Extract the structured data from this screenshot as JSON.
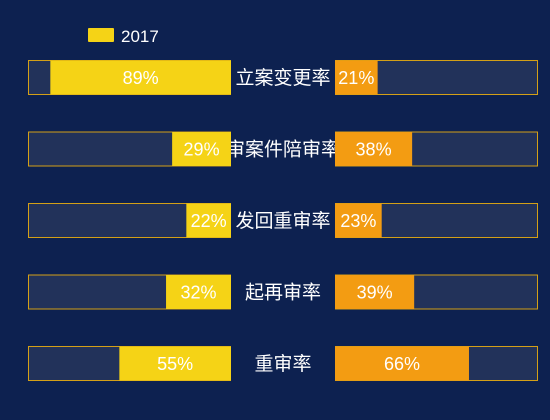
{
  "chart_data": {
    "type": "bar",
    "layout": "butterfly",
    "legend": {
      "position": "top-left",
      "entries": [
        {
          "label": "2017",
          "color": "#f5d316"
        }
      ]
    },
    "categories": [
      "立案变更率",
      "审案件陪审率",
      "发回重审率",
      "起再审率",
      "重审率"
    ],
    "category_labels_visible": [
      "立案变更率",
      "审案件陪审率",
      "发回重审率",
      "起再审率",
      "重审率"
    ],
    "xlim": [
      0,
      100
    ],
    "series": [
      {
        "side": "left",
        "name": "2017",
        "color": "#f5d316",
        "values": [
          89,
          29,
          22,
          32,
          55
        ],
        "labels": [
          "89%",
          "29%",
          "22%",
          "32%",
          "55%"
        ]
      },
      {
        "side": "right",
        "color": "#f39c12",
        "values": [
          21,
          38,
          23,
          39,
          66
        ],
        "labels": [
          "21%",
          "38%",
          "23%",
          "39%",
          "66%"
        ]
      }
    ],
    "track_color": "#22325a",
    "track_border_color": "#d4a017",
    "label_color": "#ffffff",
    "background": "#0d2150"
  }
}
